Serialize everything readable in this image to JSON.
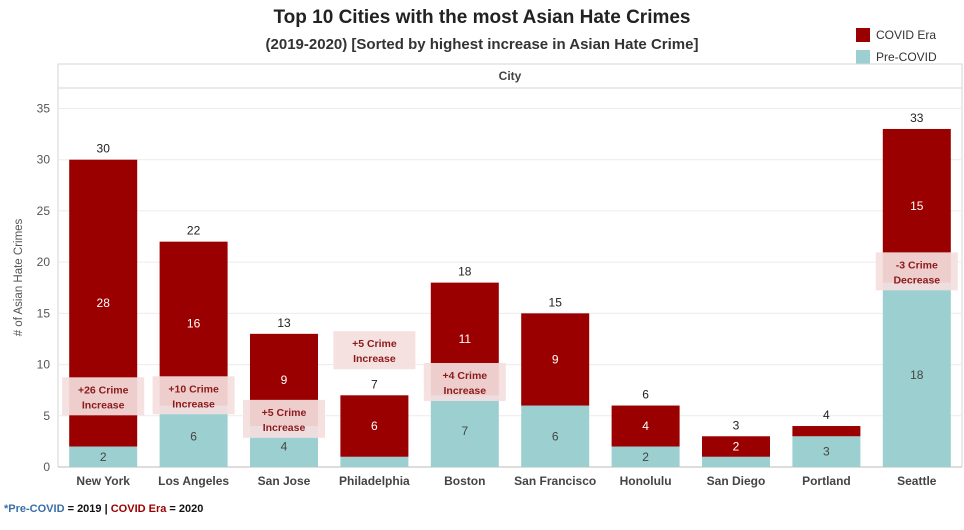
{
  "chart_data": {
    "type": "bar",
    "stacked": true,
    "title": "Top 10 Cities with the most Asian Hate Crimes",
    "subtitle": "(2019-2020) [Sorted by highest increase in Asian Hate Crime]",
    "xlabel": "City",
    "ylabel": "# of Asian Hate Crimes",
    "ylim": [
      0,
      37
    ],
    "yticks": [
      0,
      5,
      10,
      15,
      20,
      25,
      30,
      35
    ],
    "categories": [
      "New York",
      "Los Angeles",
      "San Jose",
      "Philadelphia",
      "Boston",
      "San Francisco",
      "Honolulu",
      "San Diego",
      "Portland",
      "Seattle"
    ],
    "series": [
      {
        "name": "Pre-COVID",
        "color": "#9ccfd0",
        "values": [
          2,
          6,
          4,
          1,
          7,
          6,
          2,
          1,
          3,
          18
        ],
        "labels": [
          "2",
          "6",
          "4",
          "",
          "7",
          "6",
          "2",
          "",
          "3",
          "18"
        ]
      },
      {
        "name": "COVID Era",
        "color": "#9b0000",
        "values": [
          28,
          16,
          9,
          6,
          11,
          9,
          4,
          2,
          1,
          15
        ],
        "labels": [
          "28",
          "16",
          "9",
          "6",
          "11",
          "9",
          "4",
          "2",
          "",
          "15"
        ]
      }
    ],
    "totals": [
      30,
      22,
      13,
      7,
      18,
      15,
      6,
      3,
      4,
      33
    ],
    "annotations": [
      {
        "category": "New York",
        "lines": [
          "+26 Crime",
          "Increase"
        ],
        "y": 6.9
      },
      {
        "category": "Los Angeles",
        "lines": [
          "+10 Crime",
          "Increase"
        ],
        "y": 7.0
      },
      {
        "category": "San Jose",
        "lines": [
          "+5 Crime",
          "Increase"
        ],
        "y": 4.7
      },
      {
        "category": "Philadelphia",
        "lines": [
          "+5 Crime",
          "Increase"
        ],
        "y": 11.4
      },
      {
        "category": "Boston",
        "lines": [
          "+4 Crime",
          "Increase"
        ],
        "y": 8.3
      },
      {
        "category": "Seattle",
        "lines": [
          "-3 Crime",
          "Decrease"
        ],
        "y": 19.1
      }
    ],
    "legend": "top-right",
    "grid": true
  },
  "footnote": {
    "star": "*",
    "pre": "Pre-COVID",
    "eq1": " = 2019 | ",
    "covid": "COVID Era",
    "eq2": " = 2020"
  }
}
